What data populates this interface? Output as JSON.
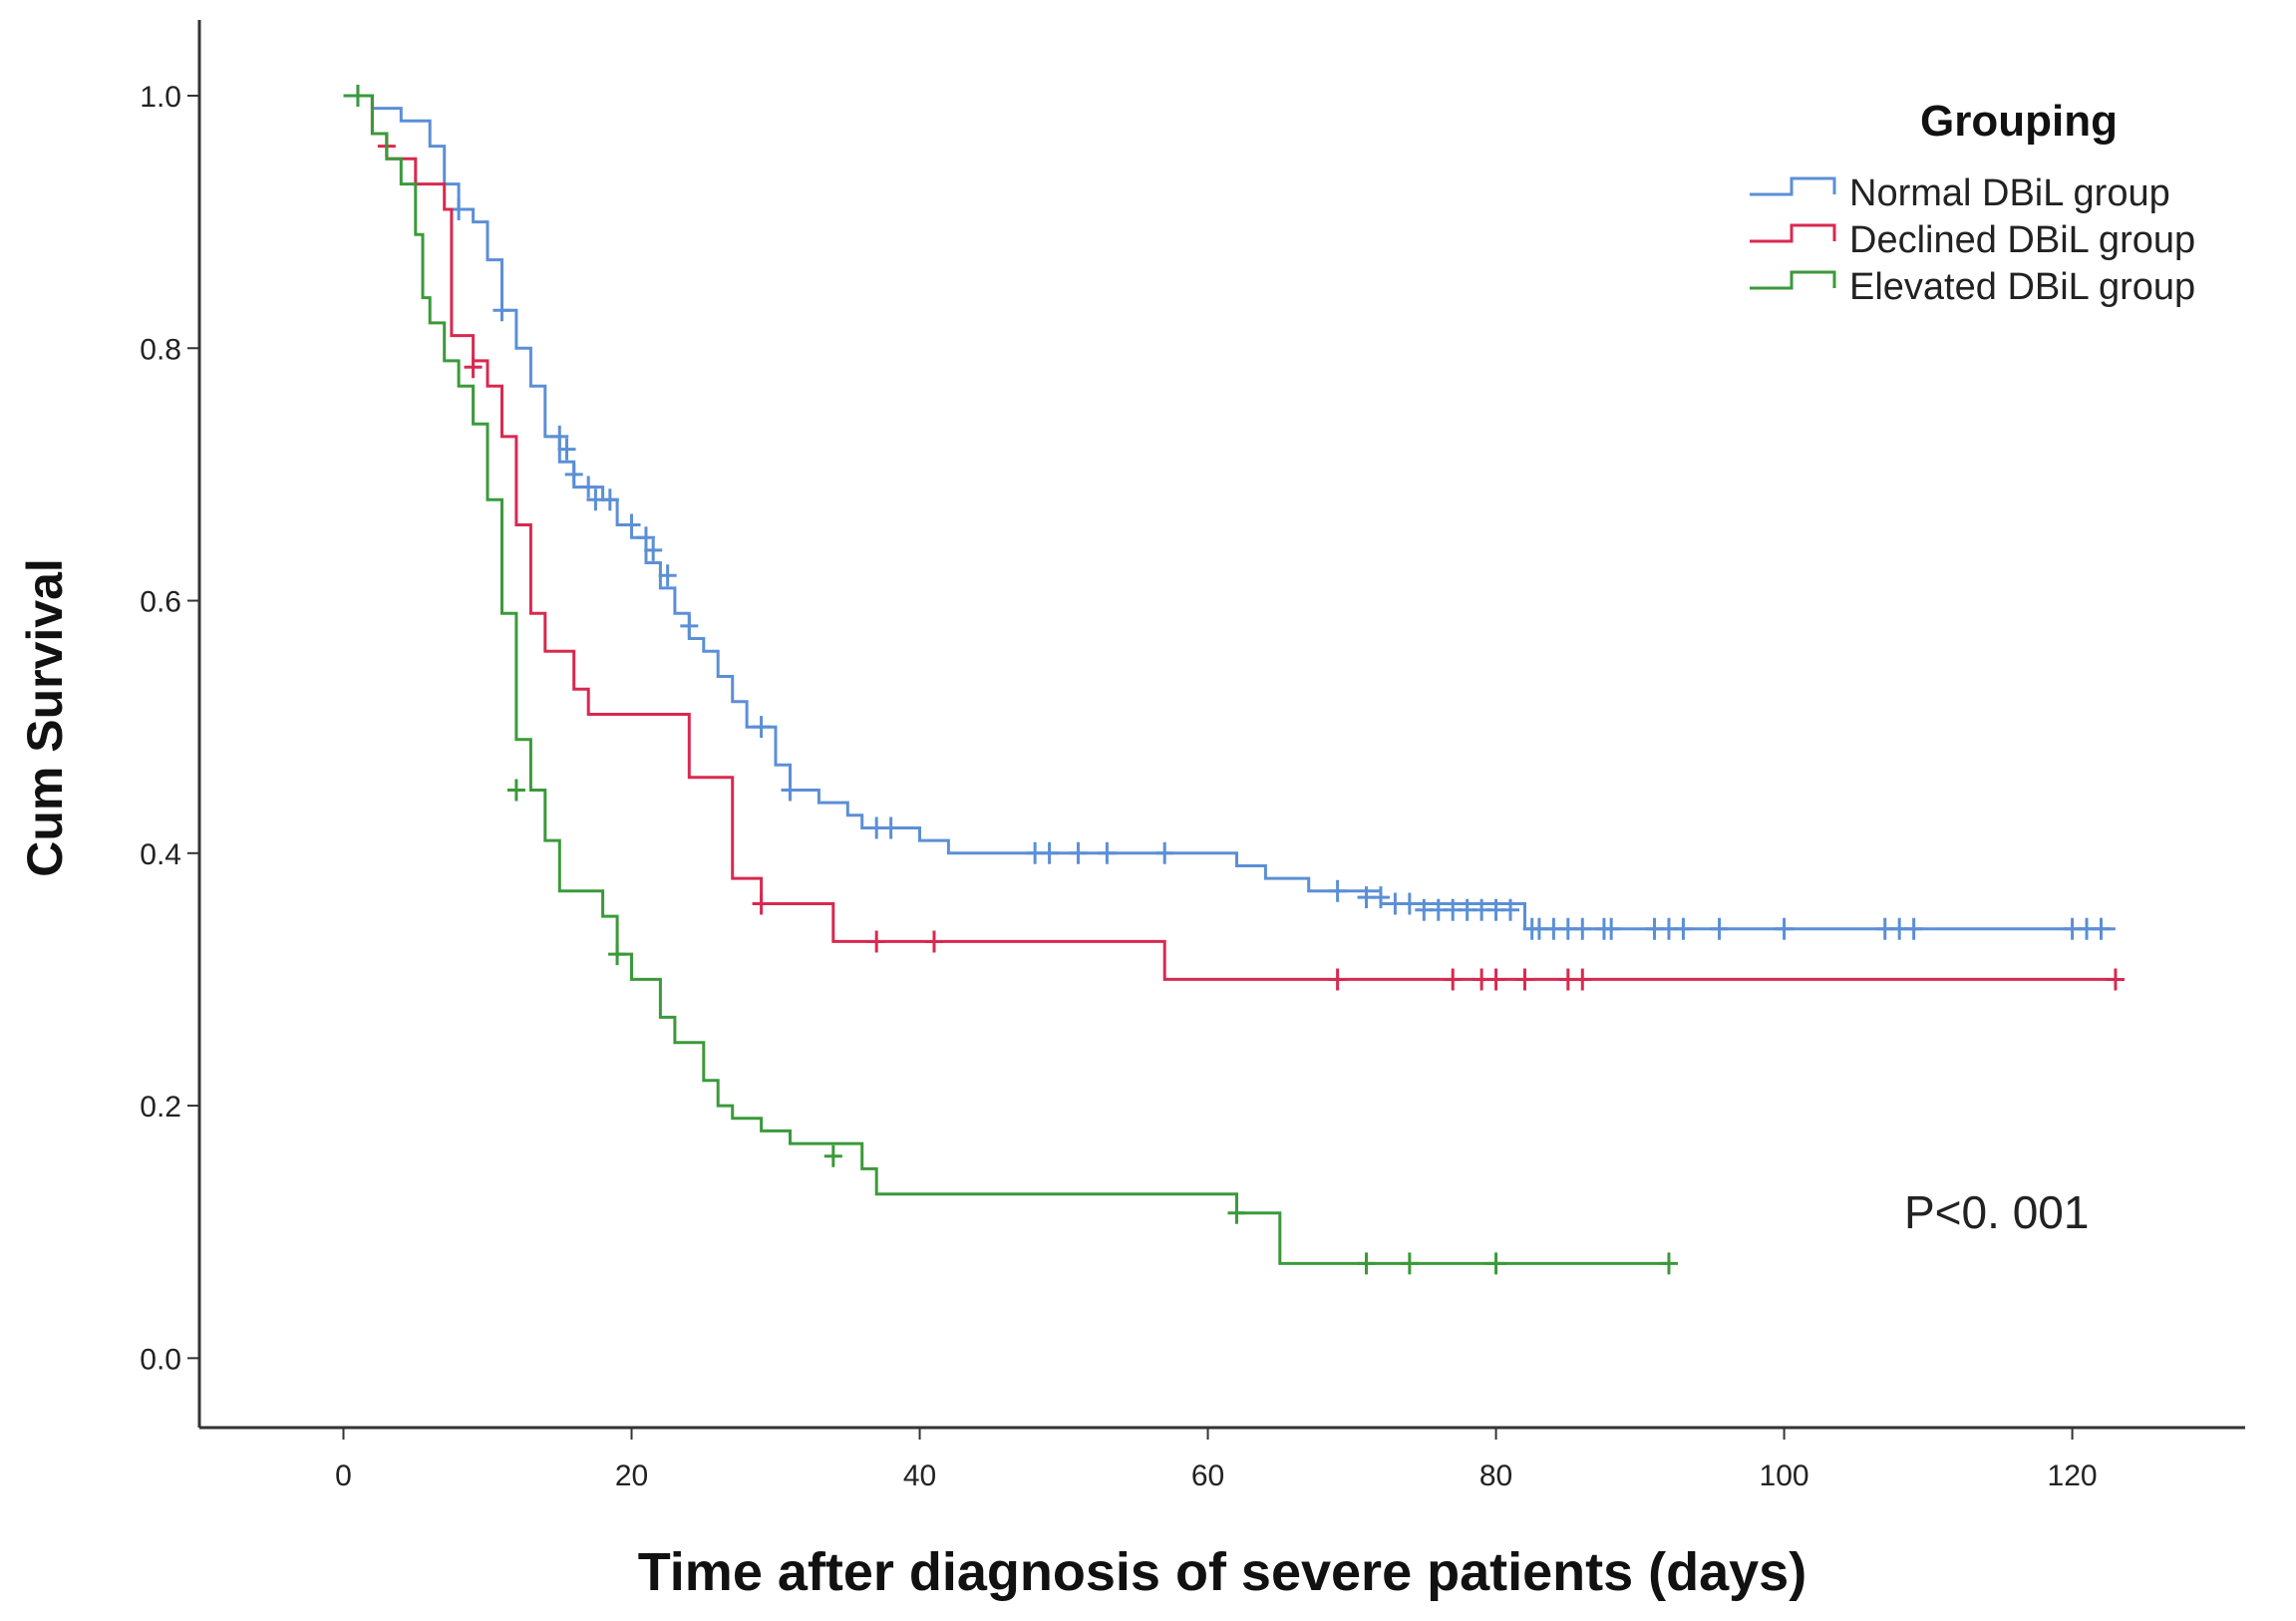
{
  "chart_data": {
    "type": "line",
    "subtype": "kaplan-meier step",
    "title": "",
    "xlabel": "Time after diagnosis of severe patients (days)",
    "ylabel": "Cum Survival",
    "xlim": [
      -10,
      132
    ],
    "ylim": [
      -0.055,
      1.06
    ],
    "xticks": [
      0,
      20,
      40,
      60,
      80,
      100,
      120
    ],
    "yticks": [
      0.0,
      0.2,
      0.4,
      0.6,
      0.8,
      1.0
    ],
    "ytick_labels": [
      "0.0",
      "0.2",
      "0.4",
      "0.6",
      "0.8",
      "1.0"
    ],
    "grid": false,
    "legend": {
      "title": "Grouping",
      "position": "top-right"
    },
    "annotation": "P<0. 001",
    "series": [
      {
        "name": "Normal DBiL group",
        "color": "#5b8fd6",
        "steps": [
          [
            0,
            1.0
          ],
          [
            2,
            0.99
          ],
          [
            4,
            0.98
          ],
          [
            6,
            0.96
          ],
          [
            7,
            0.93
          ],
          [
            8,
            0.91
          ],
          [
            9,
            0.9
          ],
          [
            10,
            0.87
          ],
          [
            11,
            0.83
          ],
          [
            12,
            0.8
          ],
          [
            13,
            0.77
          ],
          [
            14,
            0.73
          ],
          [
            15,
            0.71
          ],
          [
            16,
            0.69
          ],
          [
            18,
            0.68
          ],
          [
            19,
            0.66
          ],
          [
            20,
            0.65
          ],
          [
            21,
            0.63
          ],
          [
            22,
            0.61
          ],
          [
            23,
            0.59
          ],
          [
            24,
            0.57
          ],
          [
            25,
            0.56
          ],
          [
            26,
            0.54
          ],
          [
            27,
            0.52
          ],
          [
            28,
            0.5
          ],
          [
            30,
            0.47
          ],
          [
            31,
            0.45
          ],
          [
            33,
            0.44
          ],
          [
            35,
            0.43
          ],
          [
            36,
            0.42
          ],
          [
            40,
            0.41
          ],
          [
            42,
            0.4
          ],
          [
            62,
            0.39
          ],
          [
            64,
            0.38
          ],
          [
            67,
            0.37
          ],
          [
            72,
            0.36
          ],
          [
            82,
            0.34
          ],
          [
            123,
            0.34
          ]
        ],
        "censors": [
          [
            1,
            1.0
          ],
          [
            8,
            0.91
          ],
          [
            11,
            0.83
          ],
          [
            15,
            0.73
          ],
          [
            15.5,
            0.72
          ],
          [
            16,
            0.7
          ],
          [
            17,
            0.69
          ],
          [
            17.5,
            0.68
          ],
          [
            18.5,
            0.68
          ],
          [
            20,
            0.66
          ],
          [
            21,
            0.65
          ],
          [
            21.5,
            0.64
          ],
          [
            22.5,
            0.62
          ],
          [
            24,
            0.58
          ],
          [
            29,
            0.5
          ],
          [
            31,
            0.45
          ],
          [
            37,
            0.42
          ],
          [
            38,
            0.42
          ],
          [
            48,
            0.4
          ],
          [
            49,
            0.4
          ],
          [
            51,
            0.4
          ],
          [
            53,
            0.4
          ],
          [
            57,
            0.4
          ],
          [
            69,
            0.37
          ],
          [
            71,
            0.365
          ],
          [
            72,
            0.365
          ],
          [
            73,
            0.36
          ],
          [
            74,
            0.36
          ],
          [
            75,
            0.355
          ],
          [
            76,
            0.355
          ],
          [
            77,
            0.355
          ],
          [
            78,
            0.355
          ],
          [
            79,
            0.355
          ],
          [
            80,
            0.355
          ],
          [
            81,
            0.355
          ],
          [
            82.5,
            0.34
          ],
          [
            83,
            0.34
          ],
          [
            84,
            0.34
          ],
          [
            85,
            0.34
          ],
          [
            86,
            0.34
          ],
          [
            87.5,
            0.34
          ],
          [
            88,
            0.34
          ],
          [
            91,
            0.34
          ],
          [
            92,
            0.34
          ],
          [
            93,
            0.34
          ],
          [
            95.5,
            0.34
          ],
          [
            100,
            0.34
          ],
          [
            107,
            0.34
          ],
          [
            108,
            0.34
          ],
          [
            109,
            0.34
          ],
          [
            120,
            0.34
          ],
          [
            121,
            0.34
          ],
          [
            122,
            0.34
          ]
        ]
      },
      {
        "name": "Declined DBiL group",
        "color": "#d8294f",
        "steps": [
          [
            0,
            1.0
          ],
          [
            2,
            0.97
          ],
          [
            3,
            0.95
          ],
          [
            5,
            0.93
          ],
          [
            7,
            0.91
          ],
          [
            7.5,
            0.81
          ],
          [
            9,
            0.79
          ],
          [
            10,
            0.77
          ],
          [
            11,
            0.73
          ],
          [
            12,
            0.66
          ],
          [
            13,
            0.59
          ],
          [
            14,
            0.56
          ],
          [
            16,
            0.53
          ],
          [
            17,
            0.51
          ],
          [
            24,
            0.46
          ],
          [
            27,
            0.38
          ],
          [
            29,
            0.36
          ],
          [
            34,
            0.33
          ],
          [
            57,
            0.3
          ],
          [
            123,
            0.3
          ]
        ],
        "censors": [
          [
            3,
            0.96
          ],
          [
            9,
            0.785
          ],
          [
            29,
            0.36
          ],
          [
            37,
            0.33
          ],
          [
            41,
            0.33
          ],
          [
            69,
            0.3
          ],
          [
            77,
            0.3
          ],
          [
            79,
            0.3
          ],
          [
            80,
            0.3
          ],
          [
            82,
            0.3
          ],
          [
            85,
            0.3
          ],
          [
            86,
            0.3
          ],
          [
            123,
            0.3
          ]
        ]
      },
      {
        "name": "Elevated DBiL group",
        "color": "#3a9a3a",
        "steps": [
          [
            0,
            1.0
          ],
          [
            2,
            0.97
          ],
          [
            3,
            0.95
          ],
          [
            4,
            0.93
          ],
          [
            5,
            0.89
          ],
          [
            5.5,
            0.84
          ],
          [
            6,
            0.82
          ],
          [
            7,
            0.79
          ],
          [
            8,
            0.77
          ],
          [
            9,
            0.74
          ],
          [
            10,
            0.68
          ],
          [
            11,
            0.59
          ],
          [
            12,
            0.49
          ],
          [
            13,
            0.45
          ],
          [
            14,
            0.41
          ],
          [
            15,
            0.37
          ],
          [
            18,
            0.35
          ],
          [
            19,
            0.32
          ],
          [
            20,
            0.3
          ],
          [
            22,
            0.27
          ],
          [
            23,
            0.25
          ],
          [
            25,
            0.22
          ],
          [
            26,
            0.2
          ],
          [
            27,
            0.19
          ],
          [
            29,
            0.18
          ],
          [
            31,
            0.17
          ],
          [
            36,
            0.15
          ],
          [
            37,
            0.13
          ],
          [
            62,
            0.115
          ],
          [
            65,
            0.075
          ],
          [
            92,
            0.075
          ]
        ],
        "censors": [
          [
            1,
            1.0
          ],
          [
            12,
            0.45
          ],
          [
            19,
            0.32
          ],
          [
            34,
            0.16
          ],
          [
            62,
            0.115
          ],
          [
            71,
            0.075
          ],
          [
            74,
            0.075
          ],
          [
            80,
            0.075
          ],
          [
            92,
            0.075
          ]
        ]
      }
    ]
  }
}
